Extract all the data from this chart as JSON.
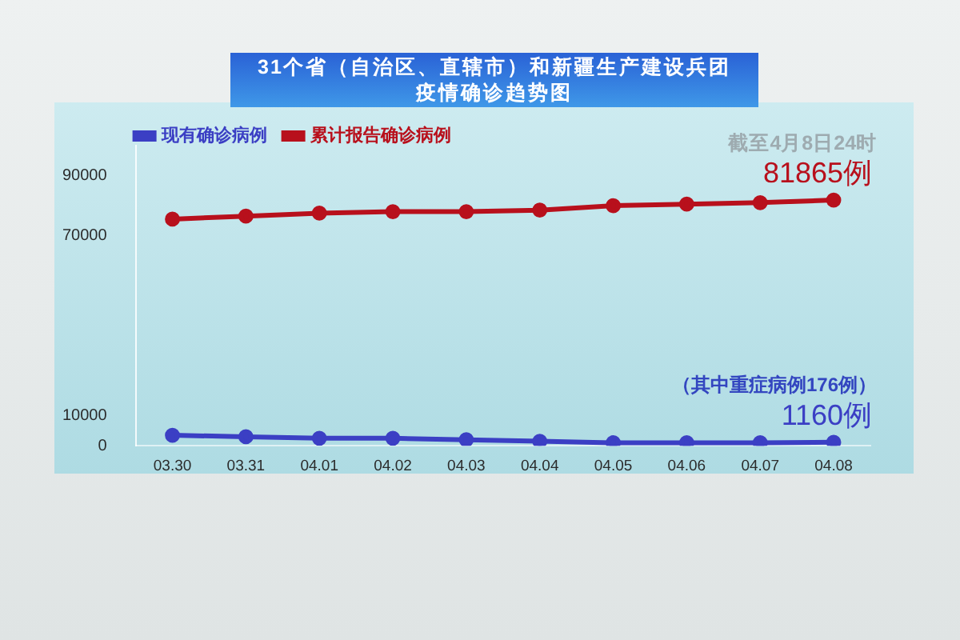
{
  "chart_data": {
    "type": "line",
    "title": "31个省（自治区、直辖市）和新疆生产建设兵团疫情确诊趋势图",
    "categories": [
      "03.30",
      "03.31",
      "04.01",
      "04.02",
      "04.03",
      "04.04",
      "04.05",
      "04.06",
      "04.07",
      "04.08"
    ],
    "series": [
      {
        "name": "现有确诊病例",
        "color": "#3b3fc4",
        "values": [
          3500,
          3000,
          2500,
          2500,
          2000,
          1500,
          1000,
          1000,
          1000,
          1160
        ],
        "value_labels": [
          null,
          null,
          null,
          null,
          null,
          null,
          null,
          null,
          null,
          "1160例"
        ]
      },
      {
        "name": "累计报告确诊病例",
        "color": "#b8101c",
        "values": [
          75500,
          76500,
          77500,
          78000,
          78000,
          78500,
          80000,
          80500,
          81000,
          81865
        ],
        "value_labels": [
          null,
          null,
          null,
          null,
          null,
          null,
          null,
          null,
          null,
          "81865例"
        ]
      }
    ],
    "ylim": [
      0,
      100000
    ],
    "yticks": [
      0,
      10000,
      70000,
      90000
    ],
    "legend": "top left",
    "marker": "circle",
    "annotations": [
      {
        "text": "截至4月8日24时",
        "x": "04.08",
        "y": 81865
      },
      {
        "text": "（其中重症病例176例）",
        "x": "04.08",
        "y": 1160
      }
    ]
  }
}
